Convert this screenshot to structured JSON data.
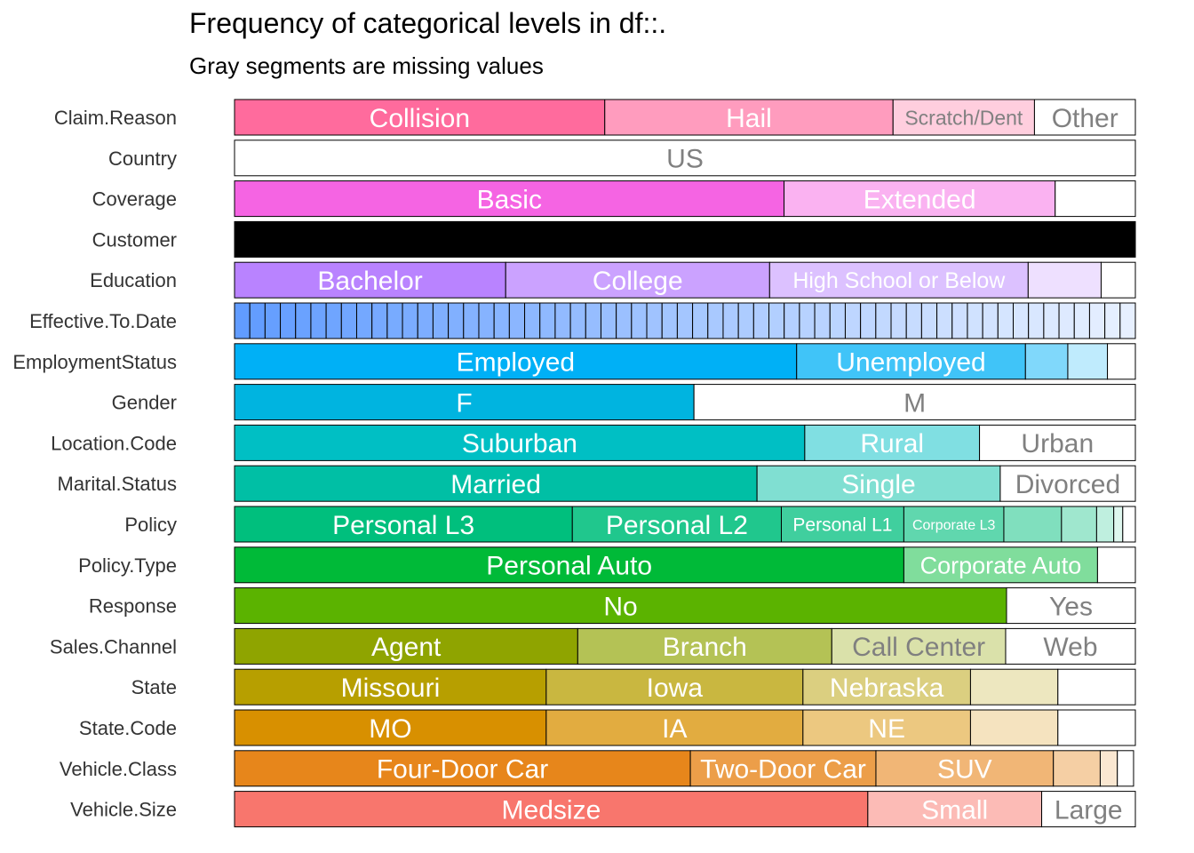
{
  "title": "Frequency of categorical levels in df::.",
  "subtitle": "Gray segments are missing values",
  "chart_data": {
    "type": "stacked-bar",
    "orientation": "horizontal",
    "value_unit": "proportion",
    "rows": [
      {
        "variable": "Claim.Reason",
        "color": "#ff6b9d",
        "segments": [
          {
            "label": "Collision",
            "value": 0.411
          },
          {
            "label": "Hail",
            "value": 0.32
          },
          {
            "label": "Scratch/Dent",
            "value": 0.157
          },
          {
            "label": "Other",
            "value": 0.112
          }
        ]
      },
      {
        "variable": "Country",
        "color": "#ffffff",
        "segments": [
          {
            "label": "US",
            "value": 1.0
          }
        ]
      },
      {
        "variable": "Coverage",
        "color": "#f564e3",
        "segments": [
          {
            "label": "Basic",
            "value": 0.61
          },
          {
            "label": "Extended",
            "value": 0.301
          },
          {
            "label": "",
            "value": 0.089
          }
        ]
      },
      {
        "variable": "Customer",
        "color": "#000000",
        "solid": true,
        "segments": [
          {
            "label": "",
            "value": 1.0
          }
        ]
      },
      {
        "variable": "Education",
        "color": "#b983ff",
        "segments": [
          {
            "label": "Bachelor",
            "value": 0.301
          },
          {
            "label": "College",
            "value": 0.293
          },
          {
            "label": "High School or Below",
            "value": 0.287
          },
          {
            "label": "",
            "value": 0.081
          },
          {
            "label": "",
            "value": 0.038
          }
        ]
      },
      {
        "variable": "Effective.To.Date",
        "color": "#619cff",
        "ticks": 59,
        "segments": []
      },
      {
        "variable": "EmploymentStatus",
        "color": "#00b0f6",
        "segments": [
          {
            "label": "Employed",
            "value": 0.624
          },
          {
            "label": "Unemployed",
            "value": 0.254
          },
          {
            "label": "",
            "value": 0.047
          },
          {
            "label": "",
            "value": 0.044
          },
          {
            "label": "",
            "value": 0.031
          }
        ]
      },
      {
        "variable": "Gender",
        "color": "#00b4e0",
        "segments": [
          {
            "label": "F",
            "value": 0.51
          },
          {
            "label": "M",
            "value": 0.49
          }
        ]
      },
      {
        "variable": "Location.Code",
        "color": "#00bfc4",
        "segments": [
          {
            "label": "Suburban",
            "value": 0.633
          },
          {
            "label": "Rural",
            "value": 0.194
          },
          {
            "label": "Urban",
            "value": 0.173
          }
        ]
      },
      {
        "variable": "Marital.Status",
        "color": "#00bfa5",
        "segments": [
          {
            "label": "Married",
            "value": 0.58
          },
          {
            "label": "Single",
            "value": 0.27
          },
          {
            "label": "Divorced",
            "value": 0.15
          }
        ]
      },
      {
        "variable": "Policy",
        "color": "#00bf7d",
        "segments": [
          {
            "label": "Personal L3",
            "value": 0.375
          },
          {
            "label": "Personal L2",
            "value": 0.232
          },
          {
            "label": "Personal L1",
            "value": 0.136
          },
          {
            "label": "Corporate L3",
            "value": 0.111
          },
          {
            "label": "",
            "value": 0.064
          },
          {
            "label": "",
            "value": 0.039
          },
          {
            "label": "",
            "value": 0.019
          },
          {
            "label": "",
            "value": 0.01
          },
          {
            "label": "",
            "value": 0.014
          }
        ]
      },
      {
        "variable": "Policy.Type",
        "color": "#00ba38",
        "segments": [
          {
            "label": "Personal Auto",
            "value": 0.743
          },
          {
            "label": "Corporate Auto",
            "value": 0.215
          },
          {
            "label": "",
            "value": 0.042
          }
        ]
      },
      {
        "variable": "Response",
        "color": "#5bb300",
        "segments": [
          {
            "label": "No",
            "value": 0.857
          },
          {
            "label": "Yes",
            "value": 0.143
          }
        ]
      },
      {
        "variable": "Sales.Channel",
        "color": "#8fa400",
        "segments": [
          {
            "label": "Agent",
            "value": 0.381
          },
          {
            "label": "Branch",
            "value": 0.282
          },
          {
            "label": "Call Center",
            "value": 0.193
          },
          {
            "label": "Web",
            "value": 0.144
          }
        ]
      },
      {
        "variable": "State",
        "color": "#b79f00",
        "segments": [
          {
            "label": "Missouri",
            "value": 0.346
          },
          {
            "label": "Iowa",
            "value": 0.285
          },
          {
            "label": "Nebraska",
            "value": 0.186
          },
          {
            "label": "",
            "value": 0.097
          },
          {
            "label": "",
            "value": 0.086
          }
        ]
      },
      {
        "variable": "State.Code",
        "color": "#d89000",
        "segments": [
          {
            "label": "MO",
            "value": 0.346
          },
          {
            "label": "IA",
            "value": 0.285
          },
          {
            "label": "NE",
            "value": 0.186
          },
          {
            "label": "",
            "value": 0.097
          },
          {
            "label": "",
            "value": 0.086
          }
        ]
      },
      {
        "variable": "Vehicle.Class",
        "color": "#e7861b",
        "segments": [
          {
            "label": "Four-Door Car",
            "value": 0.506
          },
          {
            "label": "Two-Door Car",
            "value": 0.206
          },
          {
            "label": "SUV",
            "value": 0.197
          },
          {
            "label": "",
            "value": 0.052
          },
          {
            "label": "",
            "value": 0.019
          },
          {
            "label": "",
            "value": 0.018
          }
        ]
      },
      {
        "variable": "Vehicle.Size",
        "color": "#f8766d",
        "segments": [
          {
            "label": "Medsize",
            "value": 0.703
          },
          {
            "label": "Small",
            "value": 0.193
          },
          {
            "label": "Large",
            "value": 0.104
          }
        ]
      }
    ]
  }
}
